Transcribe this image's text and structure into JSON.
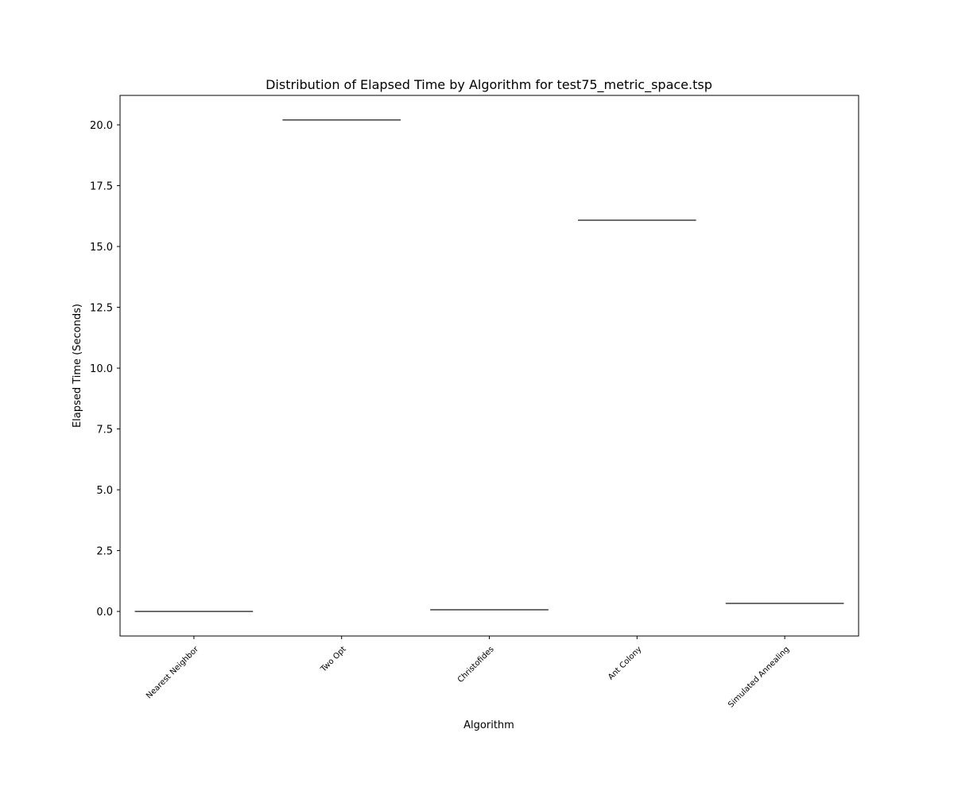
{
  "chart_data": {
    "type": "box",
    "title": "Distribution of Elapsed Time by Algorithm for test75_metric_space.tsp",
    "xlabel": "Algorithm",
    "ylabel": "Elapsed Time (Seconds)",
    "categories": [
      "Nearest Neighbor",
      "Two Opt",
      "Christofides",
      "Ant Colony",
      "Simulated Annealing"
    ],
    "values": [
      0.0,
      20.2,
      0.07,
      16.08,
      0.33
    ],
    "ylim": [
      -1.01,
      21.21
    ],
    "yticks": [
      0.0,
      2.5,
      5.0,
      7.5,
      10.0,
      12.5,
      15.0,
      17.5,
      20.0
    ],
    "ytick_labels": [
      "0.0",
      "2.5",
      "5.0",
      "7.5",
      "10.0",
      "12.5",
      "15.0",
      "17.5",
      "20.0"
    ],
    "grid": false,
    "colors": {
      "box_line": "#3f3f3f",
      "axes": "#000000"
    }
  }
}
